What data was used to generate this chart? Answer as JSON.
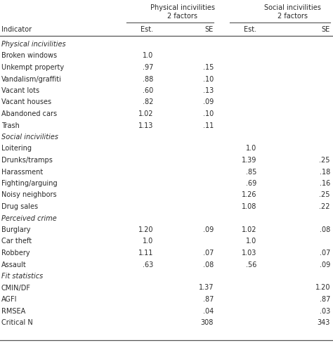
{
  "header_group1": "Physical incivilities\n2 factors",
  "header_group2": "Social incivilities\n2 factors",
  "sections": [
    {
      "label": "Physical incivilities",
      "italic": true,
      "rows": null
    },
    {
      "label": "Broken windows",
      "italic": false,
      "rows": [
        "1.0",
        "",
        "",
        ""
      ]
    },
    {
      "label": "Unkempt property",
      "italic": false,
      "rows": [
        ".97",
        ".15",
        "",
        ""
      ]
    },
    {
      "label": "Vandalism/graffiti",
      "italic": false,
      "rows": [
        ".88",
        ".10",
        "",
        ""
      ]
    },
    {
      "label": "Vacant lots",
      "italic": false,
      "rows": [
        ".60",
        ".13",
        "",
        ""
      ]
    },
    {
      "label": "Vacant houses",
      "italic": false,
      "rows": [
        ".82",
        ".09",
        "",
        ""
      ]
    },
    {
      "label": "Abandoned cars",
      "italic": false,
      "rows": [
        "1.02",
        ".10",
        "",
        ""
      ]
    },
    {
      "label": "Trash",
      "italic": false,
      "rows": [
        "1.13",
        ".11",
        "",
        ""
      ]
    },
    {
      "label": "Social incivilities",
      "italic": true,
      "rows": null
    },
    {
      "label": "Loitering",
      "italic": false,
      "rows": [
        "",
        "",
        "1.0",
        ""
      ]
    },
    {
      "label": "Drunks/tramps",
      "italic": false,
      "rows": [
        "",
        "",
        "1.39",
        ".25"
      ]
    },
    {
      "label": "Harassment",
      "italic": false,
      "rows": [
        "",
        "",
        ".85",
        ".18"
      ]
    },
    {
      "label": "Fighting/arguing",
      "italic": false,
      "rows": [
        "",
        "",
        ".69",
        ".16"
      ]
    },
    {
      "label": "Noisy neighbors",
      "italic": false,
      "rows": [
        "",
        "",
        "1.26",
        ".25"
      ]
    },
    {
      "label": "Drug sales",
      "italic": false,
      "rows": [
        "",
        "",
        "1.08",
        ".22"
      ]
    },
    {
      "label": "Perceived crime",
      "italic": true,
      "rows": null
    },
    {
      "label": "Burglary",
      "italic": false,
      "rows": [
        "1.20",
        ".09",
        "1.02",
        ".08"
      ]
    },
    {
      "label": "Car theft",
      "italic": false,
      "rows": [
        "1.0",
        "",
        "1.0",
        ""
      ]
    },
    {
      "label": "Robbery",
      "italic": false,
      "rows": [
        "1.11",
        ".07",
        "1.03",
        ".07"
      ]
    },
    {
      "label": "Assault",
      "italic": false,
      "rows": [
        ".63",
        ".08",
        ".56",
        ".09"
      ]
    },
    {
      "label": "Fit statistics",
      "italic": true,
      "rows": null
    },
    {
      "label": "CMIN/DF",
      "italic": false,
      "rows": [
        "",
        "1.37",
        "",
        "1.20"
      ]
    },
    {
      "label": "AGFI",
      "italic": false,
      "rows": [
        "",
        ".87",
        "",
        ".87"
      ]
    },
    {
      "label": "RMSEA",
      "italic": false,
      "rows": [
        "",
        ".04",
        "",
        ".03"
      ]
    },
    {
      "label": "Critical N",
      "italic": false,
      "rows": [
        "",
        "308",
        "",
        "343"
      ]
    }
  ],
  "bg_color": "#ffffff",
  "text_color": "#2a2a2a",
  "line_color": "#555555",
  "font_size": 7.0,
  "font_family": "DejaVu Sans"
}
